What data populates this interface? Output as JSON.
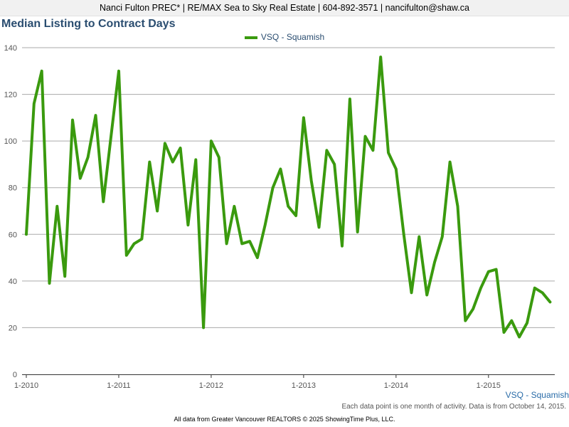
{
  "header": {
    "contact_line": "Nanci Fulton PREC* | RE/MAX Sea to Sky Real Estate | 604-892-3571 | nancifulton@shaw.ca"
  },
  "colors": {
    "series": "#3a9a0e",
    "title": "#2a4d70",
    "gridline": "#aaaaaa"
  },
  "chart_data": {
    "type": "line",
    "title": "Median Listing to Contract Days",
    "xlabel": "",
    "ylabel": "",
    "ylim": [
      0,
      140
    ],
    "y_ticks": [
      0,
      20,
      40,
      60,
      80,
      100,
      120,
      140
    ],
    "x_tick_labels": [
      "1-2010",
      "1-2011",
      "1-2012",
      "1-2013",
      "1-2014",
      "1-2015"
    ],
    "grid": true,
    "legend_position": "top-center",
    "series_end_label": "VSQ - Squamish",
    "series": [
      {
        "name": "VSQ - Squamish",
        "x_start": "2010-01",
        "x_end": "2015-09",
        "values": [
          60,
          116,
          130,
          39,
          72,
          42,
          109,
          84,
          93,
          111,
          74,
          102,
          130,
          51,
          56,
          58,
          91,
          70,
          99,
          91,
          97,
          64,
          92,
          20,
          100,
          93,
          56,
          72,
          56,
          57,
          50,
          64,
          80,
          88,
          72,
          68,
          110,
          83,
          63,
          96,
          90,
          55,
          118,
          61,
          102,
          96,
          136,
          95,
          88,
          60,
          35,
          59,
          34,
          48,
          59,
          91,
          72,
          23,
          28,
          37,
          44,
          45,
          18,
          23,
          16,
          22,
          37,
          35,
          31
        ]
      }
    ]
  },
  "notes": {
    "activity_note": "Each data point is one month of activity. Data is from October 14, 2015.",
    "source": "All data from Greater Vancouver REALTORS © 2025 ShowingTime Plus, LLC."
  }
}
